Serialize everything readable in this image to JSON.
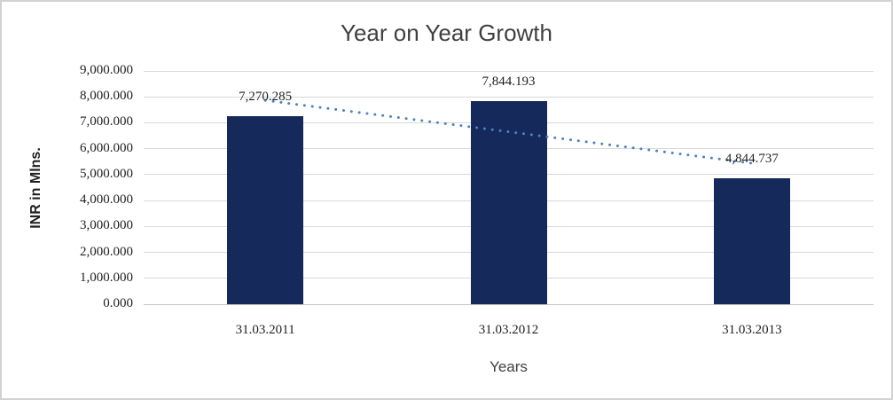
{
  "chart_data": {
    "type": "bar",
    "title": "Year on Year Growth",
    "xlabel": "Years",
    "ylabel": "INR in Mlns.",
    "categories": [
      "31.03.2011",
      "31.03.2012",
      "31.03.2013"
    ],
    "values": [
      7270.285,
      7844.193,
      4844.737
    ],
    "data_labels": [
      "7,270.285",
      "7,844.193",
      "4,844.737"
    ],
    "ylim": [
      0,
      9000
    ],
    "y_tick_step": 1000,
    "y_tick_labels": [
      "0.000",
      "1,000.000",
      "2,000.000",
      "3,000.000",
      "4,000.000",
      "5,000.000",
      "6,000.000",
      "7,000.000",
      "8,000.000",
      "9,000.000"
    ],
    "grid": true,
    "legend": "none",
    "trendline": {
      "kind": "linear",
      "style": "dotted"
    },
    "colors": {
      "bar": "#15295b",
      "trendline": "#4f81bd",
      "gridline": "#d9d9d9",
      "axis_line": "#c3c3c3",
      "title_text": "#404040",
      "label_text": "#1f1f1f",
      "border": "#d2d2d2"
    }
  }
}
